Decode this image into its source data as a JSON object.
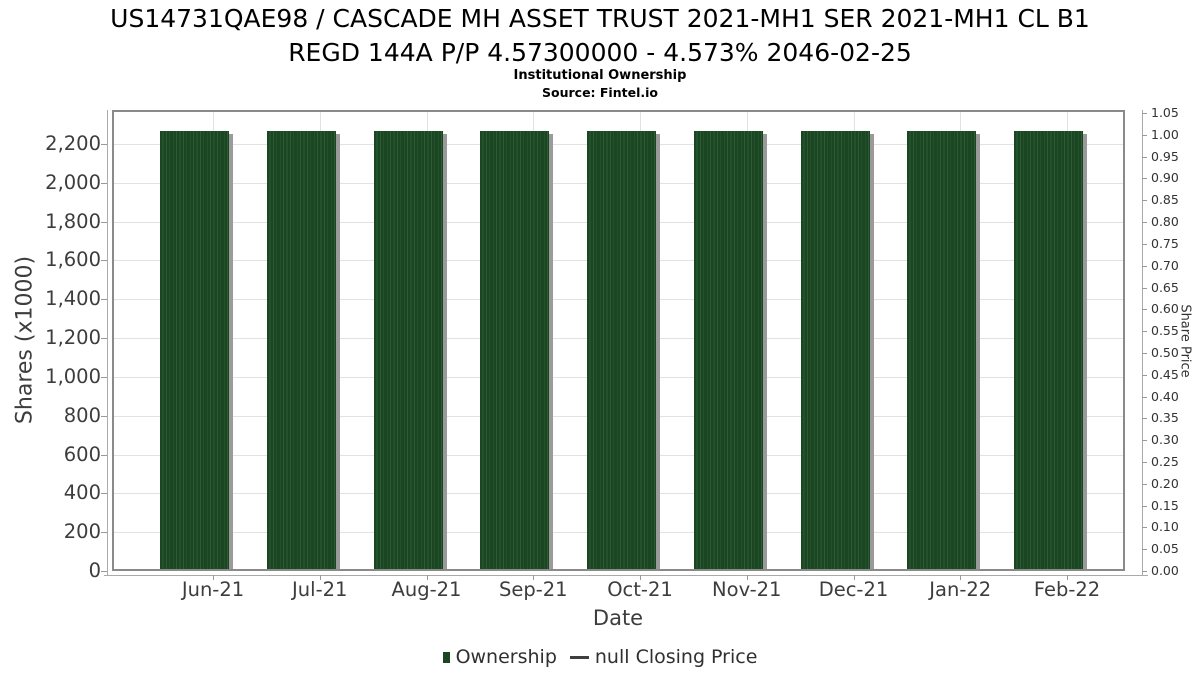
{
  "header": {
    "title_line1": "US14731QAE98 / CASCADE MH ASSET TRUST 2021-MH1 SER 2021-MH1 CL B1",
    "title_line2": "REGD 144A P/P 4.57300000 - 4.573% 2046-02-25",
    "subtitle": "Institutional Ownership",
    "source": "Source: Fintel.io"
  },
  "chart_data": {
    "type": "bar",
    "title": "Institutional Ownership",
    "xlabel": "Date",
    "ylabel_left": "Shares (x1000)",
    "ylabel_right": "Share Price",
    "categories": [
      "Jun-21",
      "Jul-21",
      "Aug-21",
      "Sep-21",
      "Oct-21",
      "Nov-21",
      "Dec-21",
      "Jan-22",
      "Feb-22"
    ],
    "series": [
      {
        "name": "Ownership",
        "type": "bar",
        "axis": "left",
        "values": [
          2265,
          2265,
          2265,
          2265,
          2265,
          2265,
          2265,
          2265,
          2265
        ]
      },
      {
        "name": "null Closing Price",
        "type": "line",
        "axis": "right",
        "values": [
          null,
          null,
          null,
          null,
          null,
          null,
          null,
          null,
          null
        ]
      }
    ],
    "ylim_left": [
      0,
      2375
    ],
    "ylim_right": [
      0,
      1.057
    ],
    "yticks_left": [
      {
        "value": 0,
        "label": "0"
      },
      {
        "value": 200,
        "label": "200"
      },
      {
        "value": 400,
        "label": "400"
      },
      {
        "value": 600,
        "label": "600"
      },
      {
        "value": 800,
        "label": "800"
      },
      {
        "value": 1000,
        "label": "1,000"
      },
      {
        "value": 1200,
        "label": "1,200"
      },
      {
        "value": 1400,
        "label": "1,400"
      },
      {
        "value": 1600,
        "label": "1,600"
      },
      {
        "value": 1800,
        "label": "1,800"
      },
      {
        "value": 2000,
        "label": "2,000"
      },
      {
        "value": 2200,
        "label": "2,200"
      }
    ],
    "yticks_right_step": 0.05,
    "yticks_right_labels": [
      "0.00",
      "0.05",
      "0.10",
      "0.15",
      "0.20",
      "0.25",
      "0.30",
      "0.35",
      "0.40",
      "0.45",
      "0.50",
      "0.55",
      "0.60",
      "0.65",
      "0.70",
      "0.75",
      "0.80",
      "0.85",
      "0.90",
      "0.95",
      "1.00",
      "1.05"
    ],
    "grid": true,
    "legend_position": "bottom"
  },
  "legend": {
    "items": [
      {
        "label": "Ownership",
        "marker": "square"
      },
      {
        "label": "null Closing Price",
        "marker": "line"
      }
    ]
  },
  "colors": {
    "bar": "#1a4622",
    "bar_stripe": "#2e5a36",
    "bar_shadow": "#9a9a9a",
    "grid": "#e2e2e2",
    "frame": "#8a8a8a",
    "axis_line": "#aaaaaa",
    "tick": "#999999",
    "text": "#3d3d3d",
    "title_text": "#000000",
    "legend_line": "#3f3f3f"
  }
}
